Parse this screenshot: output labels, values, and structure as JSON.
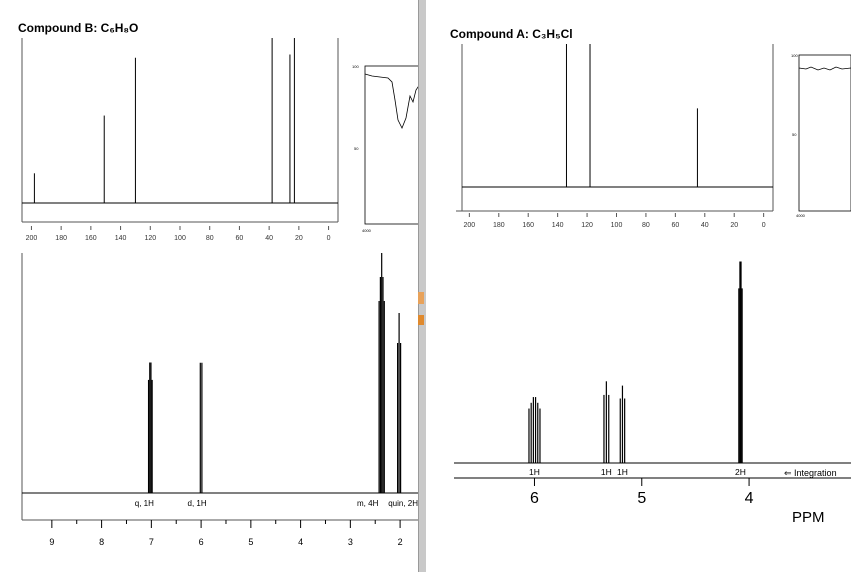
{
  "compound_b": {
    "title": "Compound B: C₆H₈O",
    "c13": {
      "type": "stick",
      "xaxis_ticks": [
        "200",
        "180",
        "160",
        "140",
        "120",
        "100",
        "80",
        "60",
        "40",
        "20",
        "0"
      ],
      "xlim": [
        205,
        -5
      ],
      "peaks": [
        {
          "ppm": 198,
          "height": 0.18
        },
        {
          "ppm": 151,
          "height": 0.53
        },
        {
          "ppm": 130,
          "height": 0.88
        },
        {
          "ppm": 38,
          "height": 1.0
        },
        {
          "ppm": 26,
          "height": 0.9
        },
        {
          "ppm": 23,
          "height": 1.0
        }
      ]
    },
    "h1": {
      "type": "line",
      "xaxis_ticks": [
        "9",
        "8",
        "7",
        "6",
        "5",
        "4",
        "3",
        "2"
      ],
      "xlim": [
        9.6,
        1.6
      ],
      "peaks": [
        {
          "ppm": 7.02,
          "height": 0.58,
          "label": "q, 1H"
        },
        {
          "ppm": 6.0,
          "height": 0.62,
          "label": "d, 1H"
        },
        {
          "ppm": 2.37,
          "height": 1.0,
          "label": "m, 4H"
        },
        {
          "ppm": 2.02,
          "height": 0.75,
          "label": "quin, 2H"
        }
      ]
    },
    "ir": {
      "ticks_top": "100",
      "ticks_mid": "50",
      "ticks_bottom": "4000"
    }
  },
  "compound_a": {
    "title": "Compound A: C₃H₅Cl",
    "c13": {
      "type": "stick",
      "xaxis_ticks": [
        "200",
        "180",
        "160",
        "140",
        "120",
        "100",
        "80",
        "60",
        "40",
        "20",
        "0"
      ],
      "xlim": [
        205,
        -5
      ],
      "peaks": [
        {
          "ppm": 134,
          "height": 1.0
        },
        {
          "ppm": 118,
          "height": 1.0
        },
        {
          "ppm": 45,
          "height": 0.55
        }
      ]
    },
    "h1": {
      "type": "line",
      "xaxis_ticks": [
        "6",
        "5",
        "4"
      ],
      "xlim": [
        6.75,
        3.05
      ],
      "peaks": [
        {
          "ppm": 6.0,
          "height": 0.32,
          "integration": "1H"
        },
        {
          "ppm": 5.33,
          "height": 0.38,
          "integration": "1H"
        },
        {
          "ppm": 5.18,
          "height": 0.36,
          "integration": "1H"
        },
        {
          "ppm": 4.08,
          "height": 1.0,
          "integration": "2H"
        }
      ],
      "integration_label": "⇐ Integration",
      "xlabel": "PPM"
    },
    "ir": {
      "ticks_top": "100",
      "ticks_mid": "50",
      "ticks_bottom": "4000"
    }
  }
}
